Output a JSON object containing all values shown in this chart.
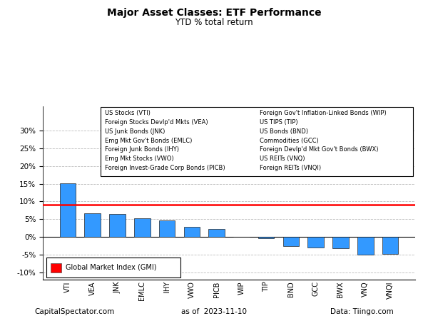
{
  "title": "Major Asset Classes: ETF Performance",
  "subtitle": "YTD % total return",
  "tickers": [
    "VTI",
    "VEA",
    "JNK",
    "EMLC",
    "IHY",
    "VWO",
    "PICB",
    "WIP",
    "TIP",
    "BND",
    "GCC",
    "BWX",
    "VNQ",
    "VNQI"
  ],
  "values": [
    15.1,
    6.6,
    6.5,
    5.3,
    4.7,
    2.8,
    2.2,
    -0.1,
    -0.5,
    -2.7,
    -3.0,
    -3.2,
    -5.1,
    -4.8
  ],
  "bar_color": "#3399FF",
  "bar_edge_color": "#222222",
  "gmi_line_value": 9.1,
  "gmi_line_color": "#FF0000",
  "legend_left": [
    "US Stocks (VTI)",
    "Foreign Stocks Devlp'd Mkts (VEA)",
    "US Junk Bonds (JNK)",
    "Emg Mkt Gov't Bonds (EMLC)",
    "Foreign Junk Bonds (IHY)",
    "Emg Mkt Stocks (VWO)",
    "Foreign Invest-Grade Corp Bonds (PICB)"
  ],
  "legend_right": [
    "Foreign Gov't Inflation-Linked Bonds (WIP)",
    "US TIPS (TIP)",
    "US Bonds (BND)",
    "Commodities (GCC)",
    "Foreign Devlp'd Mkt Gov't Bonds (BWX)",
    "US REITs (VNQ)",
    "Foreign REITs (VNQI)"
  ],
  "footer_left": "CapitalSpectator.com",
  "footer_center": "as of  2023-11-10",
  "footer_right": "Data: Tiingo.com",
  "ylim": [
    -12,
    37
  ],
  "yticks": [
    -10,
    -5,
    0,
    5,
    10,
    15,
    20,
    25,
    30
  ],
  "grid_color": "#BBBBBB",
  "background_color": "#FFFFFF"
}
